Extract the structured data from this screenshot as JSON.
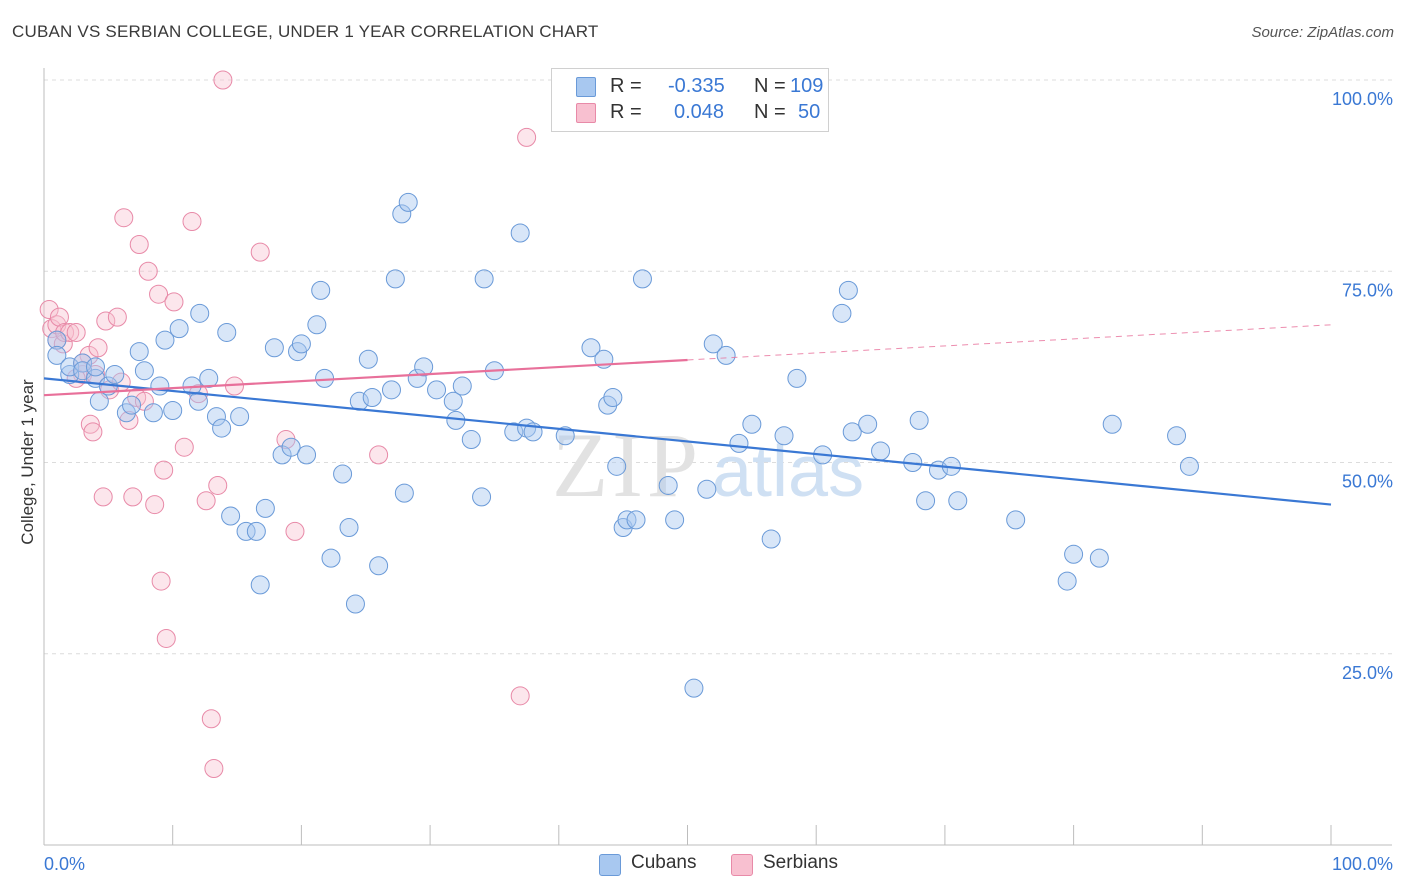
{
  "title": "CUBAN VS SERBIAN COLLEGE, UNDER 1 YEAR CORRELATION CHART",
  "source": "Source: ZipAtlas.com",
  "watermark": {
    "zip": "ZIP",
    "atlas": "atlas"
  },
  "legend": {
    "rows": [
      {
        "r_label": "R =",
        "r_value": "-0.335",
        "n_label": "N =",
        "n_value": "109",
        "color": "#a8c8f0",
        "border": "#6a9ad8"
      },
      {
        "r_label": "R =",
        "r_value": "0.048",
        "n_label": "N =",
        "n_value": "50",
        "color": "#f8c0d0",
        "border": "#e88aa8"
      }
    ]
  },
  "bottom_legend": [
    {
      "label": "Cubans",
      "color": "#a8c8f0",
      "border": "#6a9ad8"
    },
    {
      "label": "Serbians",
      "color": "#f8c0d0",
      "border": "#e88aa8"
    }
  ],
  "chart_data": {
    "type": "scatter",
    "ylabel": "College, Under 1 year",
    "x_tick_labels": [
      "0.0%",
      "100.0%"
    ],
    "y_tick_labels": [
      "100.0%",
      "75.0%",
      "50.0%",
      "25.0%"
    ],
    "y_tick_values": [
      100,
      75,
      50,
      25
    ],
    "xlim": [
      0,
      100
    ],
    "ylim": [
      0,
      100
    ],
    "grid": "horizontal dashed",
    "colors": {
      "cubans": "#3a78d4",
      "serbians": "#e8709a",
      "axis_text": "#3a78d4"
    },
    "series": [
      {
        "name": "Cubans",
        "trend": {
          "x0": 0,
          "y0": 61,
          "x1": 100,
          "y1": 44.5,
          "solid_until": 100
        },
        "points": [
          [
            1,
            66
          ],
          [
            1,
            64
          ],
          [
            2,
            61.5
          ],
          [
            2,
            62.5
          ],
          [
            3,
            63
          ],
          [
            3,
            62
          ],
          [
            4,
            61
          ],
          [
            4,
            62.5
          ],
          [
            4.3,
            58
          ],
          [
            5,
            60
          ],
          [
            5.5,
            61.5
          ],
          [
            6.4,
            56.5
          ],
          [
            6.8,
            57.5
          ],
          [
            7.4,
            64.5
          ],
          [
            7.8,
            62
          ],
          [
            8.5,
            56.5
          ],
          [
            9,
            60
          ],
          [
            9.4,
            66
          ],
          [
            10,
            56.8
          ],
          [
            10.5,
            67.5
          ],
          [
            11.5,
            60
          ],
          [
            12,
            58
          ],
          [
            12.1,
            69.5
          ],
          [
            12.8,
            61
          ],
          [
            13.4,
            56
          ],
          [
            13.8,
            54.5
          ],
          [
            14.2,
            67
          ],
          [
            14.5,
            43
          ],
          [
            15.2,
            56
          ],
          [
            15.7,
            41
          ],
          [
            16.5,
            41
          ],
          [
            16.8,
            34
          ],
          [
            17.2,
            44
          ],
          [
            17.9,
            65
          ],
          [
            18.5,
            51
          ],
          [
            19.2,
            52
          ],
          [
            19.7,
            64.5
          ],
          [
            20,
            65.5
          ],
          [
            20.4,
            51
          ],
          [
            21.2,
            68
          ],
          [
            21.5,
            72.5
          ],
          [
            21.8,
            61
          ],
          [
            22.3,
            37.5
          ],
          [
            23.2,
            48.5
          ],
          [
            23.7,
            41.5
          ],
          [
            24.2,
            31.5
          ],
          [
            24.5,
            58
          ],
          [
            25.2,
            63.5
          ],
          [
            25.5,
            58.5
          ],
          [
            26,
            36.5
          ],
          [
            27,
            59.5
          ],
          [
            27.3,
            74
          ],
          [
            27.8,
            82.5
          ],
          [
            28,
            46
          ],
          [
            28.3,
            84
          ],
          [
            29,
            61
          ],
          [
            29.5,
            62.5
          ],
          [
            30.5,
            59.5
          ],
          [
            31.8,
            58
          ],
          [
            32,
            55.5
          ],
          [
            32.5,
            60
          ],
          [
            33.2,
            53
          ],
          [
            34,
            45.5
          ],
          [
            34.2,
            74
          ],
          [
            35,
            62
          ],
          [
            36.5,
            54
          ],
          [
            37,
            80
          ],
          [
            37.5,
            54.5
          ],
          [
            38,
            54
          ],
          [
            40.5,
            53.5
          ],
          [
            42.5,
            65
          ],
          [
            43.5,
            63.5
          ],
          [
            43.8,
            57.5
          ],
          [
            44.2,
            58.5
          ],
          [
            44.5,
            49.5
          ],
          [
            45,
            41.5
          ],
          [
            45.3,
            42.5
          ],
          [
            46,
            42.5
          ],
          [
            46.5,
            74
          ],
          [
            48.5,
            47
          ],
          [
            49,
            42.5
          ],
          [
            50.5,
            20.5
          ],
          [
            51.5,
            46.5
          ],
          [
            52,
            65.5
          ],
          [
            53,
            64
          ],
          [
            54,
            52.5
          ],
          [
            55,
            55
          ],
          [
            56.5,
            40
          ],
          [
            57.5,
            53.5
          ],
          [
            58.5,
            61
          ],
          [
            60.5,
            51
          ],
          [
            62,
            69.5
          ],
          [
            62.5,
            72.5
          ],
          [
            62.8,
            54
          ],
          [
            64,
            55
          ],
          [
            65,
            51.5
          ],
          [
            67.5,
            50
          ],
          [
            68,
            55.5
          ],
          [
            68.5,
            45
          ],
          [
            69.5,
            49
          ],
          [
            70.5,
            49.5
          ],
          [
            71,
            45
          ],
          [
            75.5,
            42.5
          ],
          [
            79.5,
            34.5
          ],
          [
            80,
            38
          ],
          [
            82,
            37.5
          ],
          [
            83,
            55
          ],
          [
            88,
            53.5
          ],
          [
            89,
            49.5
          ]
        ]
      },
      {
        "name": "Serbians",
        "trend": {
          "x0": 0,
          "y0": 58.8,
          "x1": 100,
          "y1": 68,
          "solid_until": 50
        },
        "points": [
          [
            0.4,
            70
          ],
          [
            0.6,
            67.5
          ],
          [
            1,
            66
          ],
          [
            1,
            68
          ],
          [
            1.2,
            69
          ],
          [
            1.5,
            65.5
          ],
          [
            1.6,
            67
          ],
          [
            2,
            67
          ],
          [
            2.5,
            67
          ],
          [
            3.5,
            64
          ],
          [
            3,
            61.5
          ],
          [
            3.6,
            55
          ],
          [
            3.8,
            54
          ],
          [
            4.2,
            65
          ],
          [
            4.6,
            45.5
          ],
          [
            4.8,
            68.5
          ],
          [
            5.1,
            59.5
          ],
          [
            5.7,
            69
          ],
          [
            6,
            60.5
          ],
          [
            6.2,
            82
          ],
          [
            6.6,
            55.5
          ],
          [
            6.9,
            45.5
          ],
          [
            7.2,
            58.5
          ],
          [
            7.4,
            78.5
          ],
          [
            7.8,
            58
          ],
          [
            8.1,
            75
          ],
          [
            8.6,
            44.5
          ],
          [
            8.9,
            72
          ],
          [
            9.1,
            34.5
          ],
          [
            9.3,
            49
          ],
          [
            9.5,
            27
          ],
          [
            10.1,
            71
          ],
          [
            10.9,
            52
          ],
          [
            11.5,
            81.5
          ],
          [
            12,
            59
          ],
          [
            12.6,
            45
          ],
          [
            13,
            16.5
          ],
          [
            13.2,
            10
          ],
          [
            13.5,
            47
          ],
          [
            13.9,
            100
          ],
          [
            14.8,
            60
          ],
          [
            16.8,
            77.5
          ],
          [
            18.8,
            53
          ],
          [
            19.5,
            41
          ],
          [
            26,
            51
          ],
          [
            37,
            19.5
          ],
          [
            37.5,
            92.5
          ],
          [
            4,
            61.5
          ],
          [
            2.5,
            61
          ],
          [
            3,
            63
          ]
        ]
      }
    ]
  }
}
